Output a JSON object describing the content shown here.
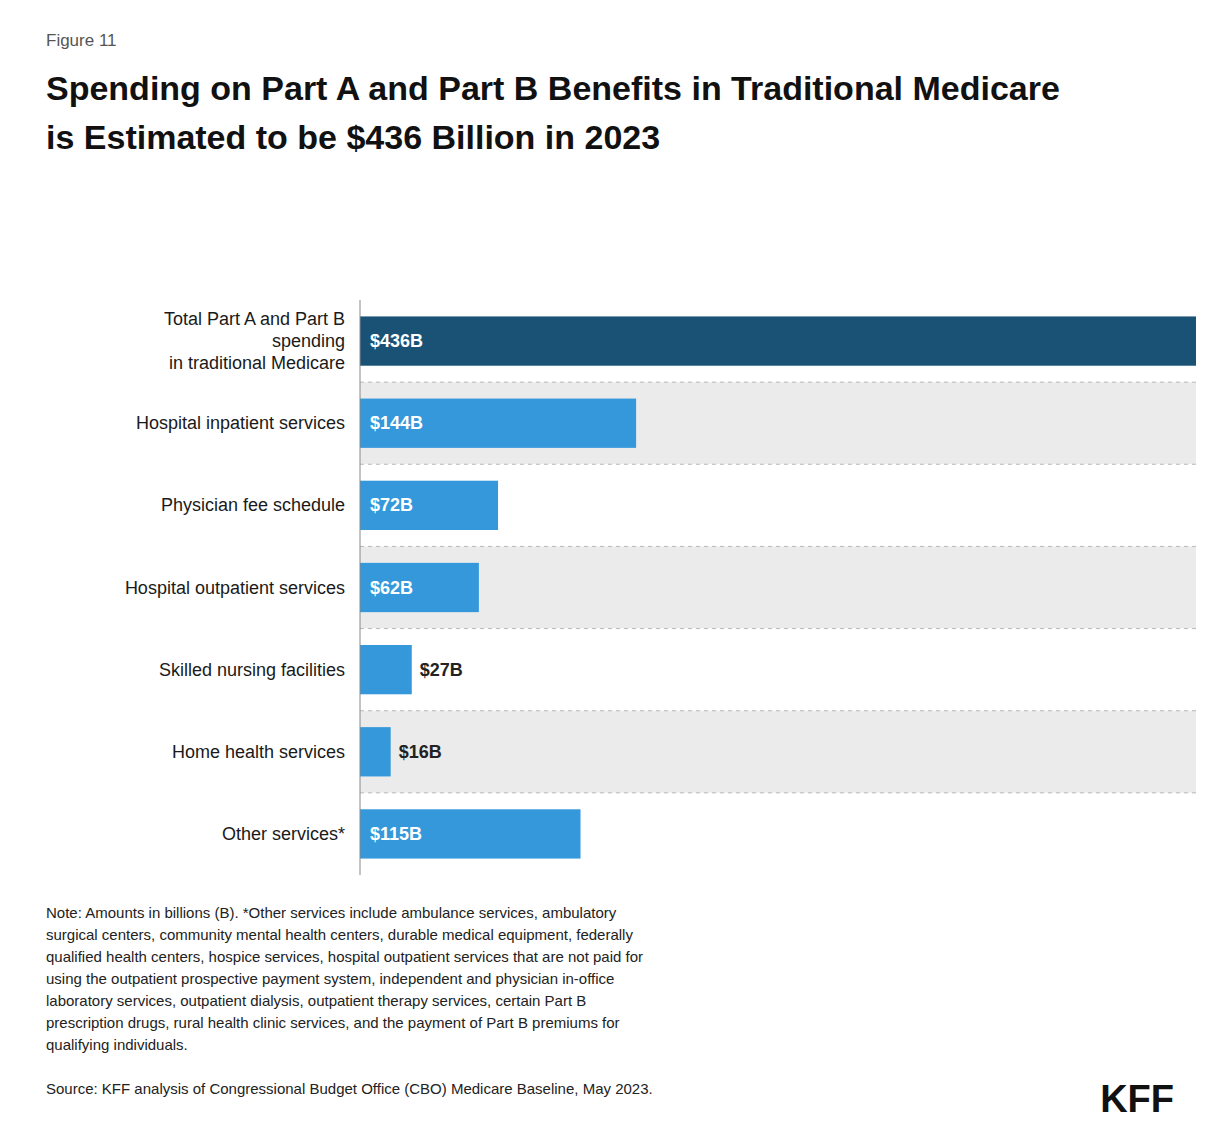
{
  "chart_data": {
    "type": "bar",
    "orientation": "horizontal",
    "title": "Spending on Part A and Part B Benefits in Traditional Medicare\nis Estimated to be $436 Billion in 2023",
    "categories": [
      "Total Part A and Part B\nspending\nin traditional Medicare",
      "Hospital inpatient services",
      "Physician fee schedule",
      "Hospital outpatient services",
      "Skilled nursing facilities",
      "Home health services",
      "Other services*"
    ],
    "values": [
      436,
      144,
      72,
      62,
      27,
      16,
      115
    ],
    "value_labels": [
      "$436B",
      "$144B",
      "$72B",
      "$62B",
      "$27B",
      "$16B",
      "$115B"
    ],
    "colors": [
      "#1a5276",
      "#3498db",
      "#3498db",
      "#3498db",
      "#3498db",
      "#3498db",
      "#3498db"
    ],
    "xlim": [
      0,
      436
    ],
    "grid": false,
    "tick_labels": false,
    "data_labels": true,
    "annotations": [
      "Figure 11",
      "Note: Amounts in billions (B). *Other services include ambulance services, ambulatory\nsurgical centers, community mental health centers, durable medical equipment, federally\nqualified health centers, hospice services, hospital outpatient services that are not paid for\nusing the outpatient prospective payment system, independent and physician in-office\nlaboratory services, outpatient dialysis, outpatient therapy services, certain Part B\nprescription drugs, rural health clinic services, and the payment of Part B premiums for\nqualifying individuals.",
      "Source: KFF analysis of Congressional Budget Office (CBO) Medicare Baseline, May 2023.",
      "KFF"
    ]
  }
}
